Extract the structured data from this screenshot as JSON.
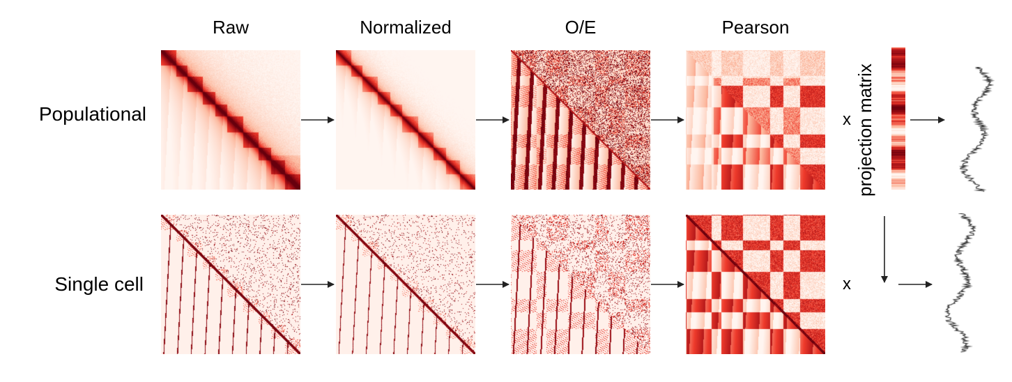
{
  "columns": [
    "Raw",
    "Normalized",
    "O/E",
    "Pearson"
  ],
  "rows": [
    {
      "label": "Populational",
      "operator": "x"
    },
    {
      "label": "Single cell",
      "operator": "x"
    }
  ],
  "projection_label": "projection matrix",
  "colors": {
    "heat_dark": "#67000d",
    "heat_mid": "#cb181d",
    "heat_light": "#fff5f0",
    "arrow": "#222222",
    "track": "#333333"
  }
}
